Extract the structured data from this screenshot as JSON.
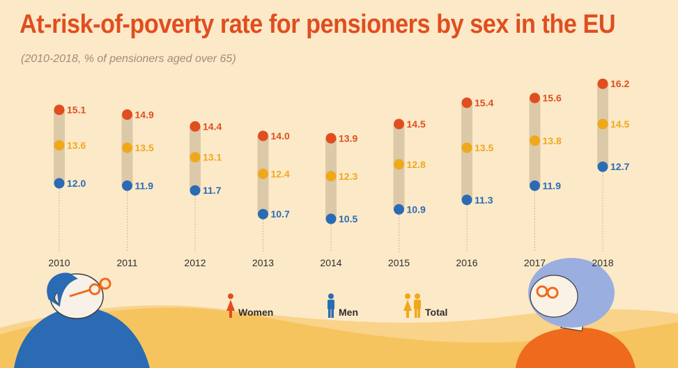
{
  "title": "At-risk-of-poverty rate for pensioners by sex in the EU",
  "subtitle": "(2010-2018, % of pensioners aged over 65)",
  "colors": {
    "women": "#e04e1f",
    "men": "#2a6bb4",
    "total": "#f0a81b",
    "range_bar": "#dcc9a8",
    "background": "#fce9c8",
    "hills": "#f6c45f",
    "man_shirt": "#2a6bb4",
    "woman_shirt": "#ef6a1c"
  },
  "legend": {
    "women": "Women",
    "men": "Men",
    "total": "Total"
  },
  "chart_data": {
    "type": "dot-range",
    "title": "At-risk-of-poverty rate for pensioners by sex in the EU",
    "subtitle": "(2010-2018, % of pensioners aged over 65)",
    "categories": [
      "2010",
      "2011",
      "2012",
      "2013",
      "2014",
      "2015",
      "2016",
      "2017",
      "2018"
    ],
    "series": [
      {
        "name": "Women",
        "key": "women",
        "values": [
          15.1,
          14.9,
          14.4,
          14.0,
          13.9,
          14.5,
          15.4,
          15.6,
          16.2
        ]
      },
      {
        "name": "Total",
        "key": "total",
        "values": [
          13.6,
          13.5,
          13.1,
          12.4,
          12.3,
          12.8,
          13.5,
          13.8,
          14.5
        ]
      },
      {
        "name": "Men",
        "key": "men",
        "values": [
          12.0,
          11.9,
          11.7,
          10.7,
          10.5,
          10.9,
          11.3,
          11.9,
          12.7
        ]
      }
    ],
    "labels": {
      "women": [
        "15.1",
        "14.9",
        "14.4",
        "14.0",
        "13.9",
        "14.5",
        "15.4",
        "15.6",
        "16.2"
      ],
      "total": [
        "13.6",
        "13.5",
        "13.1",
        "12.4",
        "12.3",
        "12.8",
        "13.5",
        "13.8",
        "14.5"
      ],
      "men": [
        "12.0",
        "11.9",
        "11.7",
        "10.7",
        "10.5",
        "10.9",
        "11.3",
        "11.9",
        "12.7"
      ]
    },
    "ylim": [
      10.0,
      16.5
    ],
    "grid": false,
    "legend_position": "bottom-center"
  }
}
